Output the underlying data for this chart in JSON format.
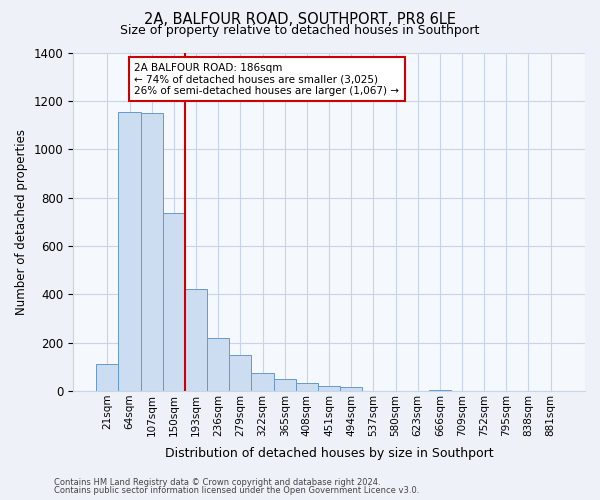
{
  "title": "2A, BALFOUR ROAD, SOUTHPORT, PR8 6LE",
  "subtitle": "Size of property relative to detached houses in Southport",
  "xlabel": "Distribution of detached houses by size in Southport",
  "ylabel": "Number of detached properties",
  "bar_labels": [
    "21sqm",
    "64sqm",
    "107sqm",
    "150sqm",
    "193sqm",
    "236sqm",
    "279sqm",
    "322sqm",
    "365sqm",
    "408sqm",
    "451sqm",
    "494sqm",
    "537sqm",
    "580sqm",
    "623sqm",
    "666sqm",
    "709sqm",
    "752sqm",
    "795sqm",
    "838sqm",
    "881sqm"
  ],
  "bar_values": [
    110,
    1155,
    1150,
    735,
    420,
    220,
    150,
    75,
    50,
    35,
    20,
    15,
    0,
    0,
    0,
    5,
    0,
    0,
    0,
    0,
    0
  ],
  "bar_color": "#ccddf2",
  "bar_edge_color": "#6699cc",
  "vline_x_index": 4,
  "vline_color": "#cc0000",
  "annotation_title": "2A BALFOUR ROAD: 186sqm",
  "annotation_line1": "← 74% of detached houses are smaller (3,025)",
  "annotation_line2": "26% of semi-detached houses are larger (1,067) →",
  "annotation_box_color": "#ffffff",
  "annotation_box_edge_color": "#cc0000",
  "ylim": [
    0,
    1400
  ],
  "yticks": [
    0,
    200,
    400,
    600,
    800,
    1000,
    1200,
    1400
  ],
  "footer1": "Contains HM Land Registry data © Crown copyright and database right 2024.",
  "footer2": "Contains public sector information licensed under the Open Government Licence v3.0.",
  "bg_color": "#eef2f8",
  "plot_bg_color": "#f5f8fd",
  "grid_color": "#c8d4e8"
}
